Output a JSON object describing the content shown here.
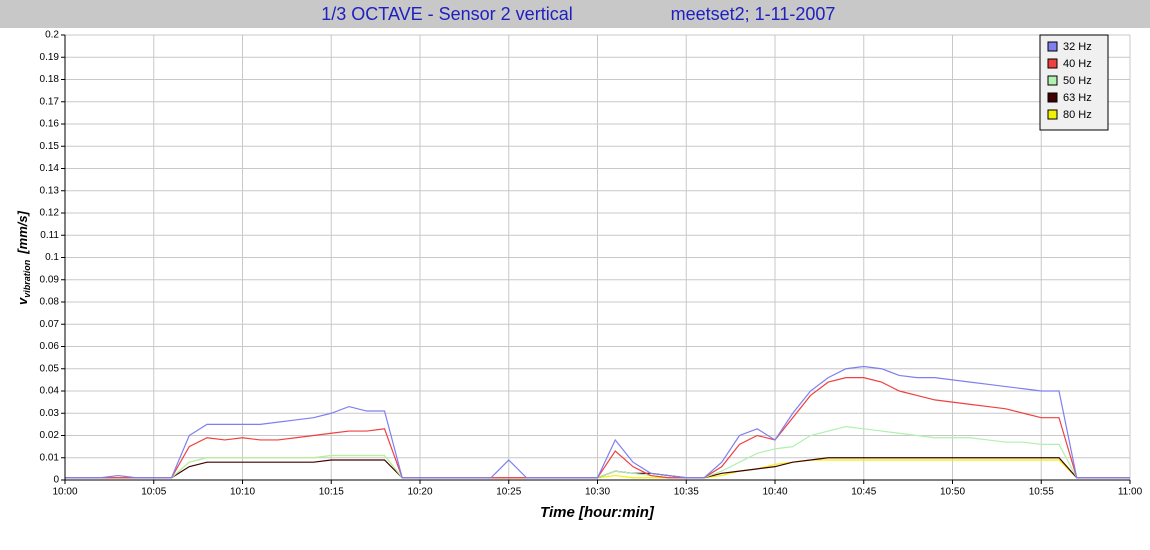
{
  "chart_data": {
    "type": "line",
    "title": "1/3 OCTAVE - Sensor 2 vertical",
    "subtitle": "meetset2; 1-11-2007",
    "x_label": "Time [hour:min]",
    "y_label": "v",
    "y_label_subscript": "vibration",
    "y_label_unit": "[mm/s]",
    "x": [
      "10:00",
      "10:01",
      "10:02",
      "10:03",
      "10:04",
      "10:05",
      "10:06",
      "10:07",
      "10:08",
      "10:09",
      "10:10",
      "10:11",
      "10:12",
      "10:13",
      "10:14",
      "10:15",
      "10:16",
      "10:17",
      "10:18",
      "10:19",
      "10:20",
      "10:21",
      "10:22",
      "10:23",
      "10:24",
      "10:25",
      "10:26",
      "10:27",
      "10:28",
      "10:29",
      "10:30",
      "10:31",
      "10:32",
      "10:33",
      "10:34",
      "10:35",
      "10:36",
      "10:37",
      "10:38",
      "10:39",
      "10:40",
      "10:41",
      "10:42",
      "10:43",
      "10:44",
      "10:45",
      "10:46",
      "10:47",
      "10:48",
      "10:49",
      "10:50",
      "10:51",
      "10:52",
      "10:53",
      "10:54",
      "10:55",
      "10:56",
      "10:57",
      "10:58",
      "10:59",
      "11:00"
    ],
    "xlim": [
      "10:00",
      "11:00"
    ],
    "xticks": [
      "10:00",
      "10:05",
      "10:10",
      "10:15",
      "10:20",
      "10:25",
      "10:30",
      "10:35",
      "10:40",
      "10:45",
      "10:50",
      "10:55",
      "11:00"
    ],
    "ylim": [
      0,
      0.2
    ],
    "yticks": [
      0,
      0.01,
      0.02,
      0.03,
      0.04,
      0.05,
      0.06,
      0.07,
      0.08,
      0.09,
      0.1,
      0.11,
      0.12,
      0.13,
      0.14,
      0.15,
      0.16,
      0.17,
      0.18,
      0.19,
      0.2
    ],
    "grid": true,
    "legend": "top-right",
    "series": [
      {
        "name": "32 Hz",
        "color": "#7f7ff0",
        "values": [
          0.001,
          0.001,
          0.001,
          0.002,
          0.001,
          0.001,
          0.001,
          0.02,
          0.025,
          0.025,
          0.025,
          0.025,
          0.026,
          0.027,
          0.028,
          0.03,
          0.033,
          0.031,
          0.031,
          0.001,
          0.001,
          0.001,
          0.001,
          0.001,
          0.001,
          0.009,
          0.001,
          0.001,
          0.001,
          0.001,
          0.001,
          0.018,
          0.008,
          0.003,
          0.002,
          0.001,
          0.001,
          0.008,
          0.02,
          0.023,
          0.018,
          0.03,
          0.04,
          0.046,
          0.05,
          0.051,
          0.05,
          0.047,
          0.046,
          0.046,
          0.045,
          0.044,
          0.043,
          0.042,
          0.041,
          0.04,
          0.04,
          0.001,
          0.001,
          0.001,
          0.001
        ]
      },
      {
        "name": "40 Hz",
        "color": "#f04040",
        "values": [
          0.001,
          0.001,
          0.001,
          0.001,
          0.001,
          0.001,
          0.001,
          0.015,
          0.019,
          0.018,
          0.019,
          0.018,
          0.018,
          0.019,
          0.02,
          0.021,
          0.022,
          0.022,
          0.023,
          0.001,
          0.001,
          0.001,
          0.001,
          0.001,
          0.001,
          0.001,
          0.001,
          0.001,
          0.001,
          0.001,
          0.001,
          0.013,
          0.006,
          0.002,
          0.001,
          0.001,
          0.001,
          0.006,
          0.016,
          0.02,
          0.018,
          0.028,
          0.038,
          0.044,
          0.046,
          0.046,
          0.044,
          0.04,
          0.038,
          0.036,
          0.035,
          0.034,
          0.033,
          0.032,
          0.03,
          0.028,
          0.028,
          0.001,
          0.001,
          0.001,
          0.001
        ]
      },
      {
        "name": "50 Hz",
        "color": "#b0f0b0",
        "values": [
          0.001,
          0.001,
          0.001,
          0.001,
          0.001,
          0.001,
          0.001,
          0.008,
          0.01,
          0.01,
          0.01,
          0.01,
          0.01,
          0.01,
          0.01,
          0.011,
          0.011,
          0.011,
          0.011,
          0.001,
          0.001,
          0.001,
          0.001,
          0.001,
          0.001,
          0.001,
          0.001,
          0.001,
          0.001,
          0.001,
          0.001,
          0.004,
          0.003,
          0.002,
          0.001,
          0.001,
          0.001,
          0.004,
          0.008,
          0.012,
          0.014,
          0.015,
          0.02,
          0.022,
          0.024,
          0.023,
          0.022,
          0.021,
          0.02,
          0.019,
          0.019,
          0.019,
          0.018,
          0.017,
          0.017,
          0.016,
          0.016,
          0.001,
          0.001,
          0.001,
          0.001
        ]
      },
      {
        "name": "63 Hz",
        "color": "#400000",
        "values": [
          0.001,
          0.001,
          0.001,
          0.001,
          0.001,
          0.001,
          0.001,
          0.006,
          0.008,
          0.008,
          0.008,
          0.008,
          0.008,
          0.008,
          0.008,
          0.009,
          0.009,
          0.009,
          0.009,
          0.001,
          0.001,
          0.001,
          0.001,
          0.001,
          0.001,
          0.001,
          0.001,
          0.001,
          0.001,
          0.001,
          0.001,
          0.004,
          0.003,
          0.003,
          0.002,
          0.001,
          0.001,
          0.003,
          0.004,
          0.005,
          0.006,
          0.008,
          0.009,
          0.01,
          0.01,
          0.01,
          0.01,
          0.01,
          0.01,
          0.01,
          0.01,
          0.01,
          0.01,
          0.01,
          0.01,
          0.01,
          0.01,
          0.001,
          0.001,
          0.001,
          0.001
        ]
      },
      {
        "name": "80 Hz",
        "color": "#f0f000",
        "values": [
          0.001,
          0.001,
          0.001,
          0.001,
          0.001,
          0.001,
          0.001,
          0.008,
          0.01,
          0.01,
          0.01,
          0.01,
          0.01,
          0.01,
          0.01,
          0.011,
          0.011,
          0.011,
          0.011,
          0.001,
          0.001,
          0.001,
          0.001,
          0.001,
          0.001,
          0.001,
          0.001,
          0.001,
          0.001,
          0.001,
          0.001,
          0.002,
          0.001,
          0.001,
          0.001,
          0.001,
          0.001,
          0.002,
          0.004,
          0.005,
          0.007,
          0.008,
          0.009,
          0.009,
          0.009,
          0.009,
          0.009,
          0.009,
          0.009,
          0.009,
          0.009,
          0.009,
          0.009,
          0.009,
          0.009,
          0.009,
          0.009,
          0.001,
          0.001,
          0.001,
          0.001
        ]
      }
    ]
  }
}
